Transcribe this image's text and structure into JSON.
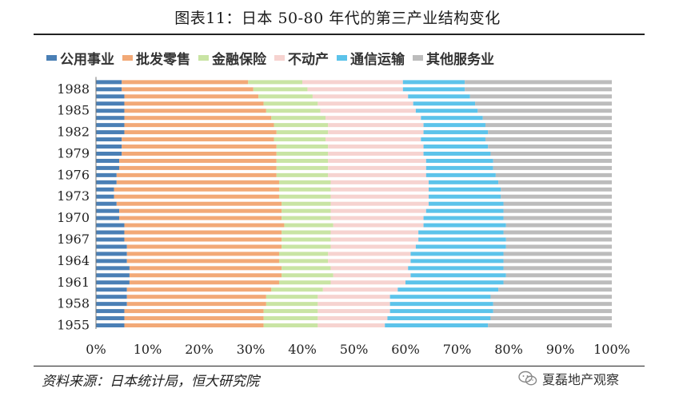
{
  "page": {
    "title": "图表11：日本 50-80 年代的第三产业结构变化",
    "source": "资料来源：日本统计局，恒大研究院",
    "brand": "夏磊地产观察",
    "brand_icon": "wechat-icon"
  },
  "chart_data": {
    "type": "bar",
    "orientation": "horizontal",
    "stacked": "percent",
    "title": "",
    "xlabel": "",
    "ylabel": "",
    "xlim": [
      0,
      100
    ],
    "x_ticks": [
      "0%",
      "10%",
      "20%",
      "30%",
      "40%",
      "50%",
      "60%",
      "70%",
      "80%",
      "90%",
      "100%"
    ],
    "y_tick_labels": [
      "1955",
      "1958",
      "1961",
      "1964",
      "1967",
      "1970",
      "1973",
      "1976",
      "1979",
      "1982",
      "1985",
      "1988"
    ],
    "legend_position": "top",
    "categories": [
      1955,
      1956,
      1957,
      1958,
      1959,
      1960,
      1961,
      1962,
      1963,
      1964,
      1965,
      1966,
      1967,
      1968,
      1969,
      1970,
      1971,
      1972,
      1973,
      1974,
      1975,
      1976,
      1977,
      1978,
      1979,
      1980,
      1981,
      1982,
      1983,
      1984,
      1985,
      1986,
      1987,
      1988,
      1989
    ],
    "series": [
      {
        "name": "公用事业",
        "color": "#4a7fb5",
        "values": [
          5.5,
          5.5,
          5.5,
          6,
          6,
          6,
          6.5,
          6.5,
          6.5,
          6,
          6,
          6,
          5.5,
          5.5,
          5.5,
          4.5,
          4.5,
          4,
          3.5,
          3.5,
          4,
          4,
          4.5,
          4.5,
          5,
          5,
          5,
          5.5,
          5.5,
          5.5,
          5.5,
          5.5,
          5.5,
          5,
          5
        ]
      },
      {
        "name": "批发零售",
        "color": "#f2a977",
        "values": [
          27,
          27,
          27,
          27,
          27,
          28,
          29,
          29.5,
          29.5,
          29.5,
          29.5,
          30,
          30.5,
          30.5,
          31,
          31.5,
          31.5,
          32,
          32,
          32,
          31.5,
          31,
          30.5,
          30.5,
          30,
          30,
          29.5,
          29.5,
          29,
          28.5,
          27.5,
          27,
          26,
          25.5,
          24.5
        ]
      },
      {
        "name": "金融保险",
        "color": "#c9e4a4",
        "values": [
          10.5,
          10.5,
          10.5,
          10,
          10,
          10,
          10,
          10,
          9.5,
          9.5,
          9.5,
          9.5,
          9.5,
          9.5,
          9.5,
          9.5,
          9.5,
          9.5,
          10,
          10,
          10,
          10,
          10,
          10,
          10,
          10,
          10,
          10,
          10.5,
          10.5,
          10.5,
          10.5,
          10.5,
          10.5,
          10.5
        ]
      },
      {
        "name": "不动产",
        "color": "#f6d3d0",
        "values": [
          13,
          13.5,
          14,
          14,
          14,
          14.5,
          14.5,
          15,
          15,
          16,
          16,
          16.5,
          17,
          17,
          17.5,
          18,
          18.5,
          19,
          19,
          19,
          19,
          19,
          19,
          19,
          18.5,
          18.5,
          18.5,
          18.5,
          18.5,
          18.5,
          18.5,
          18.5,
          18.5,
          18.5,
          19.5
        ]
      },
      {
        "name": "通信运输",
        "color": "#5cc3ea",
        "values": [
          20,
          20,
          20,
          20,
          19.5,
          19.5,
          19,
          18.5,
          18.5,
          18,
          18,
          17.5,
          17,
          16.5,
          16,
          15.5,
          15,
          14.5,
          14,
          14,
          13.5,
          13.5,
          13,
          13,
          13,
          12.5,
          12.5,
          12.5,
          12,
          12,
          12,
          12,
          12,
          12,
          12
        ]
      },
      {
        "name": "其他服务业",
        "color": "#bcbcbc",
        "values": [
          24,
          23.5,
          23,
          23,
          23.5,
          22,
          21,
          20.5,
          21,
          21,
          21,
          20.5,
          20.5,
          21,
          20.5,
          21,
          21,
          21,
          21.5,
          21.5,
          22,
          22.5,
          23,
          23,
          23.5,
          24,
          24.5,
          24,
          24.5,
          25,
          26,
          26.5,
          27.5,
          28.5,
          28.5
        ]
      }
    ]
  }
}
